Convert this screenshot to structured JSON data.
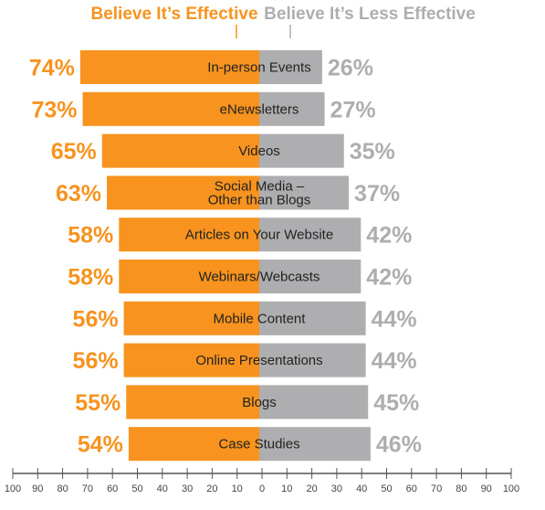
{
  "colors": {
    "effective": "#f7931e",
    "less_effective": "#aeaeb0",
    "axis": "#555555"
  },
  "legend": {
    "effective": "Believe It’s Effective",
    "less_effective": "Believe It’s Less Effective"
  },
  "chart_data": {
    "type": "bar",
    "orientation": "horizontal-diverging",
    "categories": [
      [
        "In-person Events"
      ],
      [
        "eNewsletters"
      ],
      [
        "Videos"
      ],
      [
        "Social Media –",
        "Other than Blogs"
      ],
      [
        "Articles on Your Website"
      ],
      [
        "Webinars/Webcasts"
      ],
      [
        "Mobile Content"
      ],
      [
        "Online Presentations"
      ],
      [
        "Blogs"
      ],
      [
        "Case Studies"
      ]
    ],
    "series": [
      {
        "name": "Believe It’s Effective",
        "values": [
          74,
          73,
          65,
          63,
          58,
          58,
          56,
          56,
          55,
          54
        ],
        "labels": [
          "74%",
          "73%",
          "65%",
          "63%",
          "58%",
          "58%",
          "56%",
          "56%",
          "55%",
          "54%"
        ]
      },
      {
        "name": "Believe It’s Less Effective",
        "values": [
          26,
          27,
          35,
          37,
          42,
          42,
          44,
          44,
          45,
          46
        ],
        "labels": [
          "26%",
          "27%",
          "35%",
          "37%",
          "42%",
          "42%",
          "44%",
          "44%",
          "45%",
          "46%"
        ]
      }
    ],
    "x_ticks": [
      "100",
      "90",
      "80",
      "70",
      "60",
      "50",
      "40",
      "30",
      "20",
      "10",
      "0",
      "10",
      "20",
      "30",
      "40",
      "50",
      "60",
      "70",
      "80",
      "90",
      "100"
    ],
    "xlim": [
      -100,
      100
    ],
    "grid": false,
    "legend_position": "top"
  }
}
